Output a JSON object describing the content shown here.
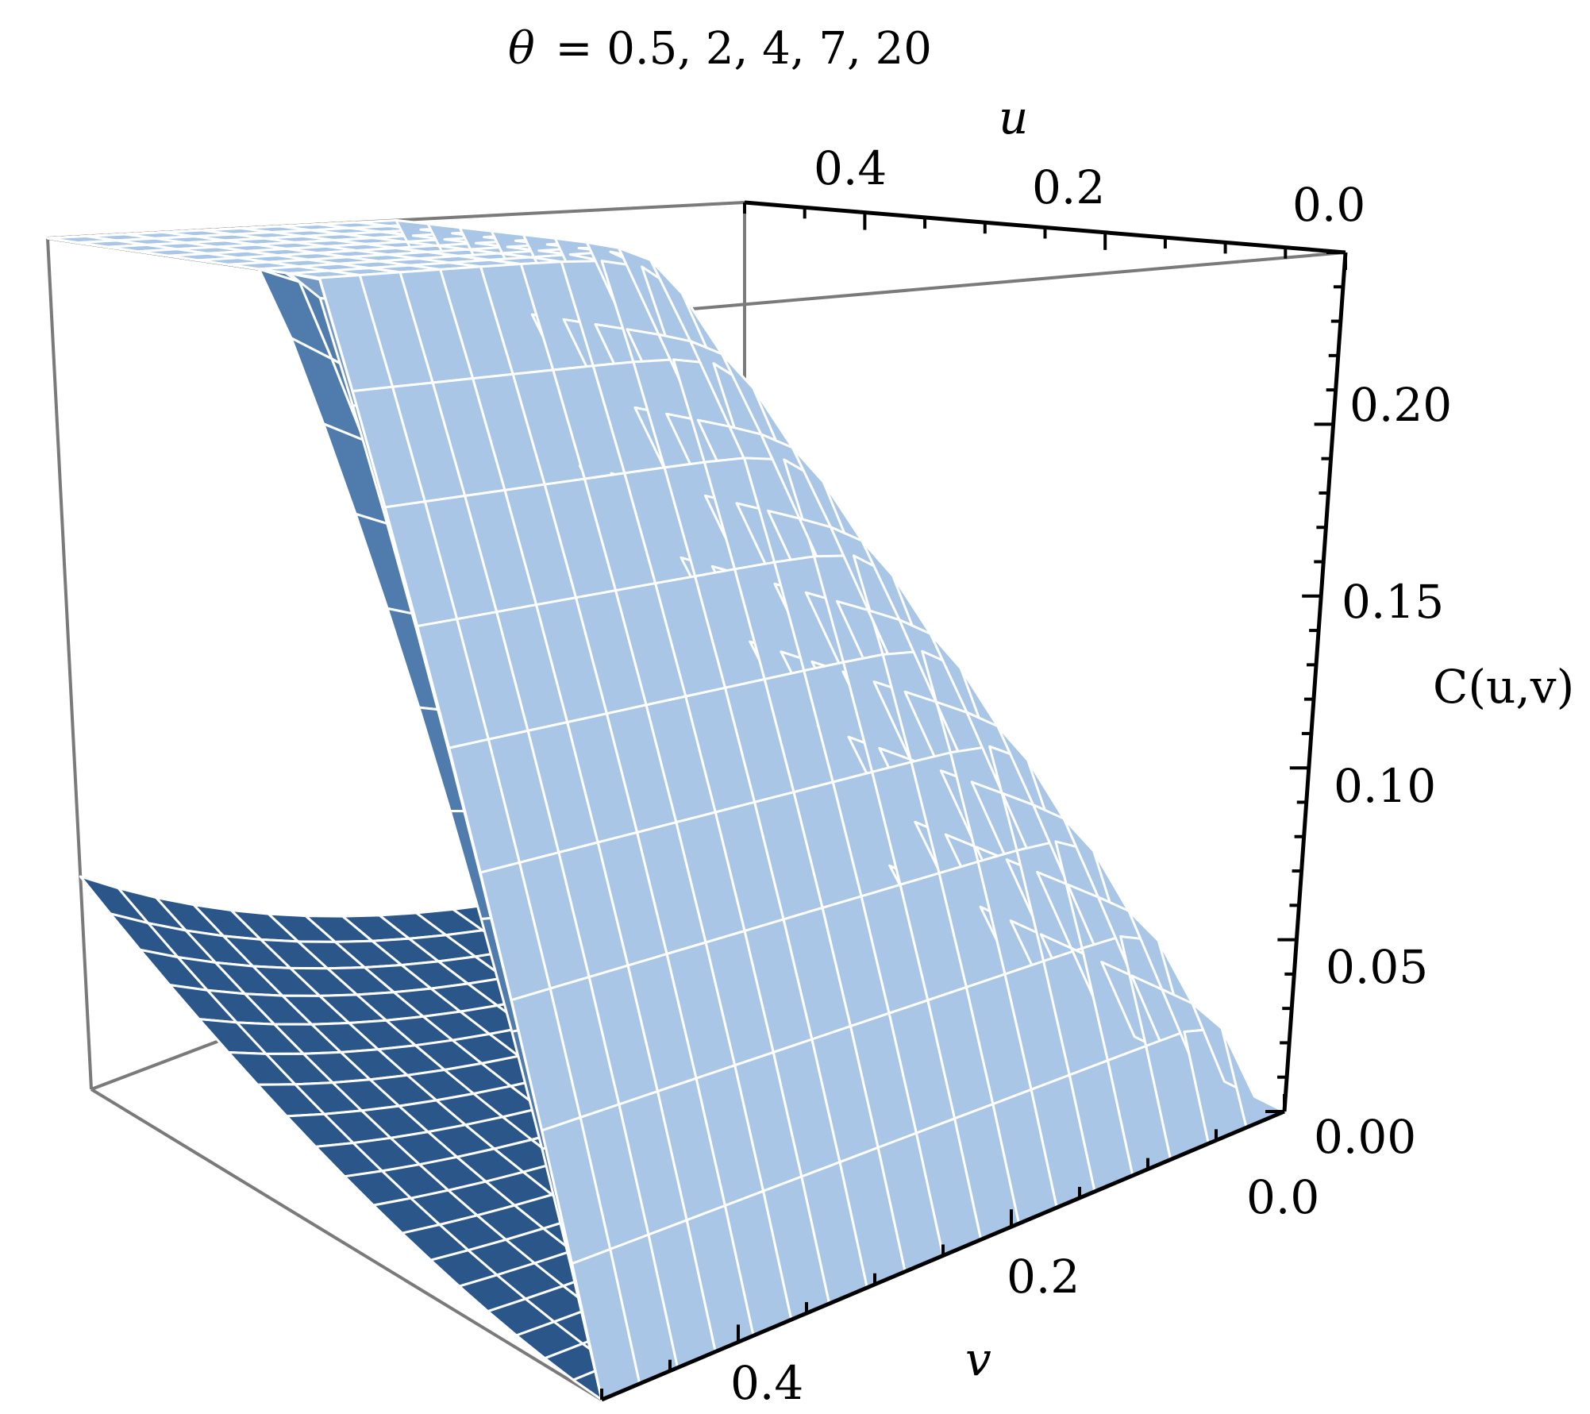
{
  "chart_data": {
    "type": "surface3d",
    "title": "θ = 0.5, 2, 4, 7, 20",
    "title_symbol": "θ",
    "title_values": "= 0.5, 2, 4, 7, 20",
    "xlabel": "u",
    "ylabel": "v",
    "zlabel": "C(u,v)",
    "xlim": [
      0.0,
      0.5
    ],
    "ylim": [
      0.0,
      0.5
    ],
    "zlim": [
      0.0,
      0.25
    ],
    "u_ticks": [
      "0.4",
      "0.2",
      "0.0"
    ],
    "v_ticks": [
      "0.0",
      "0.2",
      "0.4"
    ],
    "z_ticks": [
      "0.20",
      "0.15",
      "0.10",
      "0.05",
      "0.00"
    ],
    "series": [
      {
        "theta": 20,
        "C_at_max": 0.25,
        "color": "#a9c6e6"
      },
      {
        "theta": 7,
        "C_at_max": 0.25,
        "color": "#8fb2d8"
      },
      {
        "theta": 4,
        "C_at_max": 0.25,
        "color": "#7198c4"
      },
      {
        "theta": 2,
        "C_at_max": 0.25,
        "color": "#4f7cac"
      },
      {
        "theta": 0.5,
        "C_at_max": 0.25,
        "color": "#2a568a"
      }
    ],
    "grid": false,
    "mesh_lines": true
  }
}
